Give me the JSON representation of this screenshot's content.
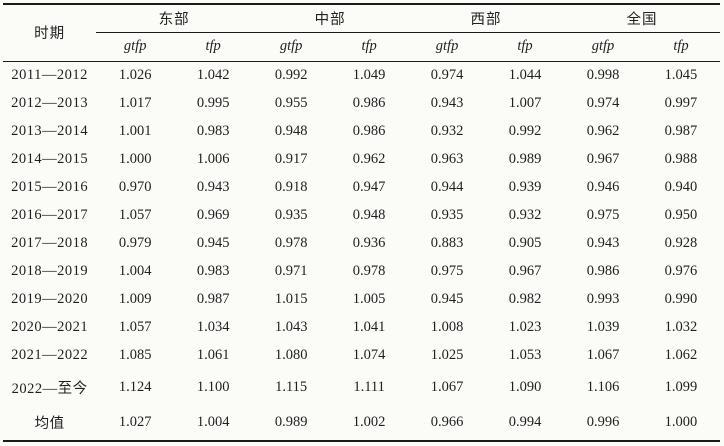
{
  "table": {
    "period_header": "时期",
    "groups": [
      {
        "label": "东部"
      },
      {
        "label": "中部"
      },
      {
        "label": "西部"
      },
      {
        "label": "全国"
      }
    ],
    "subheaders": [
      "gtfp",
      "tfp"
    ],
    "rows": [
      {
        "period": "2011—2012",
        "values": [
          "1.026",
          "1.042",
          "0.992",
          "1.049",
          "0.974",
          "1.044",
          "0.998",
          "1.045"
        ]
      },
      {
        "period": "2012—2013",
        "values": [
          "1.017",
          "0.995",
          "0.955",
          "0.986",
          "0.943",
          "1.007",
          "0.974",
          "0.997"
        ]
      },
      {
        "period": "2013—2014",
        "values": [
          "1.001",
          "0.983",
          "0.948",
          "0.986",
          "0.932",
          "0.992",
          "0.962",
          "0.987"
        ]
      },
      {
        "period": "2014—2015",
        "values": [
          "1.000",
          "1.006",
          "0.917",
          "0.962",
          "0.963",
          "0.989",
          "0.967",
          "0.988"
        ]
      },
      {
        "period": "2015—2016",
        "values": [
          "0.970",
          "0.943",
          "0.918",
          "0.947",
          "0.944",
          "0.939",
          "0.946",
          "0.940"
        ]
      },
      {
        "period": "2016—2017",
        "values": [
          "1.057",
          "0.969",
          "0.935",
          "0.948",
          "0.935",
          "0.932",
          "0.975",
          "0.950"
        ]
      },
      {
        "period": "2017—2018",
        "values": [
          "0.979",
          "0.945",
          "0.978",
          "0.936",
          "0.883",
          "0.905",
          "0.943",
          "0.928"
        ]
      },
      {
        "period": "2018—2019",
        "values": [
          "1.004",
          "0.983",
          "0.971",
          "0.978",
          "0.975",
          "0.967",
          "0.986",
          "0.976"
        ]
      },
      {
        "period": "2019—2020",
        "values": [
          "1.009",
          "0.987",
          "1.015",
          "1.005",
          "0.945",
          "0.982",
          "0.993",
          "0.990"
        ]
      },
      {
        "period": "2020—2021",
        "values": [
          "1.057",
          "1.034",
          "1.043",
          "1.041",
          "1.008",
          "1.023",
          "1.039",
          "1.032"
        ]
      },
      {
        "period": "2021—2022",
        "values": [
          "1.085",
          "1.061",
          "1.080",
          "1.074",
          "1.025",
          "1.053",
          "1.067",
          "1.062"
        ]
      },
      {
        "period": "2022—至今",
        "values": [
          "1.124",
          "1.100",
          "1.115",
          "1.111",
          "1.067",
          "1.090",
          "1.106",
          "1.099"
        ]
      },
      {
        "period": "均值",
        "values": [
          "1.027",
          "1.004",
          "0.989",
          "1.002",
          "0.966",
          "0.994",
          "0.996",
          "1.000"
        ]
      }
    ],
    "colors": {
      "rule": "#1b1b1b",
      "text": "#1f1f1f",
      "background": "#fbfbf8"
    }
  }
}
